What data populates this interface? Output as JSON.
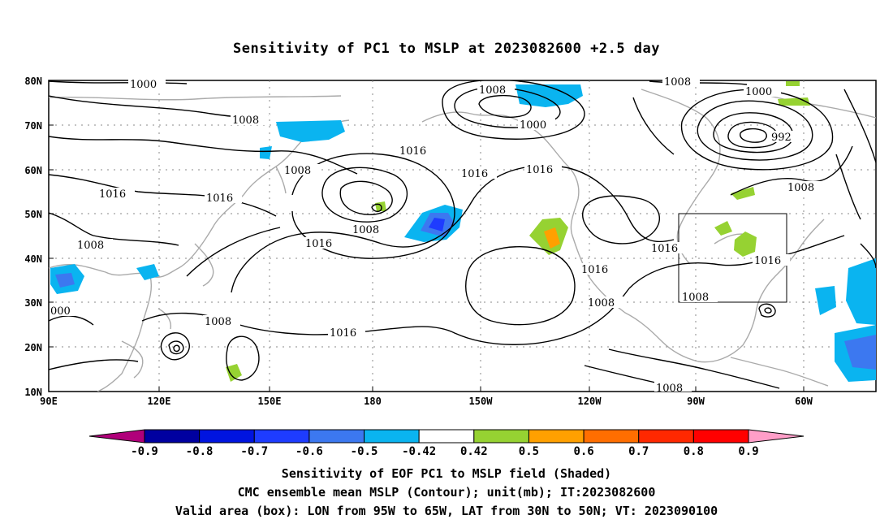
{
  "title": "Sensitivity of PC1 to MSLP at 2023082600 +2.5 day",
  "map": {
    "lat_ticks": [
      "80N",
      "70N",
      "60N",
      "50N",
      "40N",
      "30N",
      "20N",
      "10N"
    ],
    "lon_ticks": [
      "90E",
      "120E",
      "150E",
      "180",
      "150W",
      "120W",
      "90W",
      "60W"
    ],
    "contour_labels": [
      "1000",
      "1008",
      "1016",
      "992",
      "000"
    ],
    "valid_box": {
      "lon_from": "95W",
      "lon_to": "65W",
      "lat_from": "30N",
      "lat_to": "50N"
    }
  },
  "colorbar": {
    "labels": [
      "-0.9",
      "-0.8",
      "-0.7",
      "-0.6",
      "-0.5",
      "-0.42",
      "0.42",
      "0.5",
      "0.6",
      "0.7",
      "0.8",
      "0.9"
    ],
    "colors": [
      "#b0007a",
      "#0000a0",
      "#0014e0",
      "#1e3cff",
      "#3c78f0",
      "#0ab4f0",
      "#ffffff",
      "#96d232",
      "#ffa000",
      "#ff6e00",
      "#ff2800",
      "#ff0000",
      "#ff9ec8"
    ]
  },
  "captions": {
    "line1": "Sensitivity of EOF PC1 to MSLP field (Shaded)",
    "line2": "CMC ensemble mean MSLP (Contour); unit(mb); IT:2023082600",
    "line3": "Valid area (box): LON from 95W to 65W, LAT from 30N to 50N; VT: 2023090100"
  }
}
